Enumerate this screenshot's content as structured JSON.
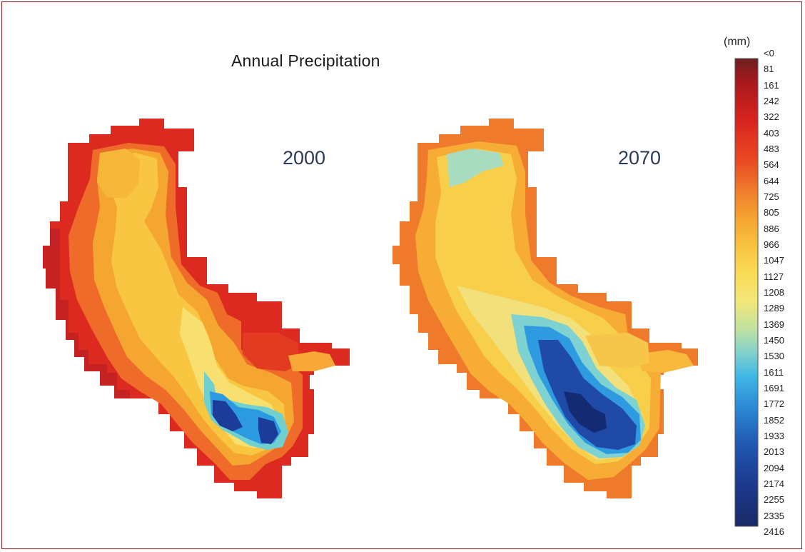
{
  "title": "Annual Precipitation",
  "unit_label": "(mm)",
  "panels": [
    {
      "year": "2000"
    },
    {
      "year": "2070"
    }
  ],
  "legend": {
    "ticks": [
      "<0",
      "81",
      "161",
      "242",
      "322",
      "403",
      "483",
      "564",
      "644",
      "725",
      "805",
      "886",
      "966",
      "1047",
      "1127",
      "1208",
      "1289",
      "1369",
      "1450",
      "1530",
      "1611",
      "1691",
      "1772",
      "1852",
      "1933",
      "2013",
      "2094",
      "2174",
      "2255",
      "2335",
      "2416"
    ],
    "gradient_colors": [
      "#6b1f1f",
      "#a8191d",
      "#d8231f",
      "#ea4a23",
      "#f07a2c",
      "#f5a331",
      "#f8c240",
      "#f9db56",
      "#f2e77a",
      "#bfe1a2",
      "#7fd0cc",
      "#3fb7e6",
      "#2a86d4",
      "#2055b0",
      "#1c3a8e",
      "#1a2a66"
    ]
  },
  "colors": {
    "frame": "#8b1a1a",
    "year_text": "#2c3b57"
  }
}
